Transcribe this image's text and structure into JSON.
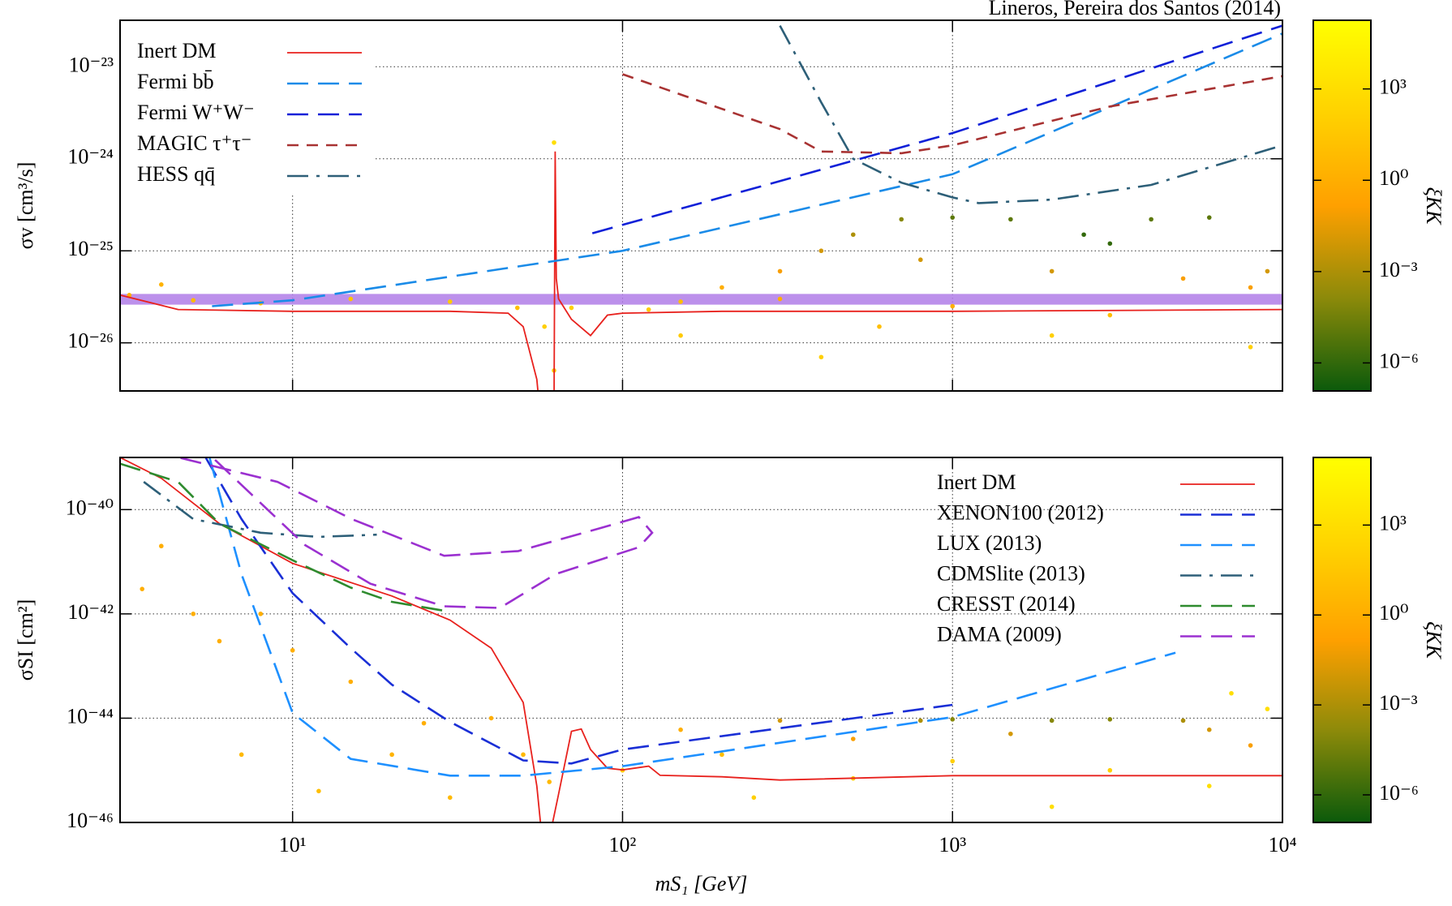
{
  "chart_data": [
    {
      "type": "line",
      "annotation": "Lineros, Pereira dos Santos (2014)",
      "ylabel": "σv [cm³/s]",
      "log_x": true,
      "log_y": true,
      "grid": true,
      "legend": "upper left",
      "xlim": [
        3,
        10000
      ],
      "xticks": [
        10,
        100,
        1000,
        10000
      ],
      "ylim": [
        3e-27,
        3.2e-23
      ],
      "yticks": [
        {
          "value": 1e-26,
          "label": "10⁻²⁶"
        },
        {
          "value": 1e-25,
          "label": "10⁻²⁵"
        },
        {
          "value": 1e-24,
          "label": "10⁻²⁴"
        },
        {
          "value": 1e-23,
          "label": "10⁻²³"
        }
      ],
      "bands": [
        {
          "color": "#b07de8",
          "ylow": 2.6e-26,
          "yhigh": 3.4e-26
        }
      ],
      "colorbar": {
        "label": "ξKK",
        "lim": [
          1.2e-07,
          180000.0
        ],
        "colors": [
          "#0b5a0b",
          "#8c8a0a",
          "#ffa000",
          "#ffd200",
          "#ffff00"
        ],
        "ticks": [
          {
            "value": 1e-06,
            "label": "10⁻⁶"
          },
          {
            "value": 0.001,
            "label": "10⁻³"
          },
          {
            "value": 1,
            "label": "10⁰"
          },
          {
            "value": 1000,
            "label": "10³"
          }
        ]
      },
      "series": [
        {
          "type": "scatter",
          "x": [
            3.2,
            4,
            5,
            8,
            15,
            30,
            48,
            58,
            62,
            62,
            70,
            120,
            150,
            200,
            300,
            400,
            500,
            700,
            1000,
            1500,
            2500,
            3000,
            4000,
            6000,
            800,
            2000,
            5000,
            8000,
            9000,
            300,
            1000,
            3000,
            600,
            2000,
            8000,
            400,
            150
          ],
          "values": [
            3.3e-26,
            4.3e-26,
            2.9e-26,
            2.7e-26,
            3e-26,
            2.8e-26,
            2.4e-26,
            1.5e-26,
            1.5e-24,
            5e-27,
            2.4e-26,
            2.3e-26,
            2.8e-26,
            4e-26,
            6e-26,
            1e-25,
            1.5e-25,
            2.2e-25,
            2.3e-25,
            2.2e-25,
            1.5e-25,
            1.2e-25,
            2.2e-25,
            2.3e-25,
            8e-26,
            6e-26,
            5e-26,
            4e-26,
            6e-26,
            3e-26,
            2.5e-26,
            2e-26,
            1.5e-26,
            1.2e-26,
            9e-27,
            7e-27,
            1.2e-26
          ],
          "xi": [
            1,
            2,
            5,
            10,
            20,
            50,
            10,
            100,
            1000,
            100,
            100,
            50,
            10,
            1,
            0.1,
            0.01,
            0.001,
            0.0001,
            1e-05,
            1e-05,
            1e-06,
            1e-06,
            1e-05,
            1e-05,
            0.01,
            0.01,
            0.1,
            0.1,
            0.01,
            1,
            1,
            10,
            10,
            100,
            100,
            100,
            50
          ]
        },
        {
          "name": "Inert DM",
          "color": "#e8211d",
          "style": "solid",
          "x": [
            3,
            4.5,
            10,
            30,
            45,
            50,
            55,
            56,
            62,
            62.5,
            63,
            64,
            70,
            80,
            90,
            100,
            200,
            1000,
            10000
          ],
          "values": [
            3.3e-26,
            2.3e-26,
            2.2e-26,
            2.2e-26,
            2.1e-26,
            1.5e-26,
            4e-27,
            2e-27,
            2e-27,
            1.2e-24,
            5e-26,
            3e-26,
            1.8e-26,
            1.2e-26,
            2e-26,
            2.1e-26,
            2.2e-26,
            2.2e-26,
            2.3e-26
          ]
        },
        {
          "name": "Fermi bb̄",
          "color": "#1a8be8",
          "style": "dashed",
          "x": [
            5.7,
            10,
            100,
            1000,
            10000
          ],
          "values": [
            2.5e-26,
            2.9e-26,
            1e-25,
            6.8e-25,
            2.3e-23
          ]
        },
        {
          "name": "Fermi W⁺W⁻",
          "color": "#1020d8",
          "style": "dashed",
          "x": [
            81,
            1000,
            10000
          ],
          "values": [
            1.55e-25,
            1.9e-24,
            2.8e-23
          ]
        },
        {
          "name": "MAGIC τ⁺τ⁻",
          "color": "#a83232",
          "style": "shortdash",
          "x": [
            100,
            300,
            400,
            700,
            1000,
            3000,
            10000
          ],
          "values": [
            8.3e-24,
            2.1e-24,
            1.2e-24,
            1.15e-24,
            1.4e-24,
            3.7e-24,
            7.9e-24
          ]
        },
        {
          "name": "HESS qq̄",
          "color": "#2d5f78",
          "style": "dashdot",
          "x": [
            300,
            400,
            500,
            700,
            1000,
            1200,
            2000,
            4000,
            10000
          ],
          "values": [
            2.8e-23,
            4.1e-24,
            1e-24,
            5.5e-25,
            3.8e-25,
            3.3e-25,
            3.6e-25,
            5.2e-25,
            1.4e-24
          ]
        }
      ]
    },
    {
      "type": "line",
      "ylabel": "σSI [cm²]",
      "xlabel": "mS₁ [GeV]",
      "log_x": true,
      "log_y": true,
      "grid": true,
      "legend": "upper right",
      "xlim": [
        3,
        10000
      ],
      "xticks": [
        {
          "value": 10,
          "label": "10¹"
        },
        {
          "value": 100,
          "label": "10²"
        },
        {
          "value": 1000,
          "label": "10³"
        },
        {
          "value": 10000,
          "label": "10⁴"
        }
      ],
      "ylim": [
        1e-46,
        1e-39
      ],
      "yticks": [
        {
          "value": 1e-46,
          "label": "10⁻⁴⁶"
        },
        {
          "value": 1e-44,
          "label": "10⁻⁴⁴"
        },
        {
          "value": 1e-42,
          "label": "10⁻⁴²"
        },
        {
          "value": 1e-40,
          "label": "10⁻⁴⁰"
        }
      ],
      "colorbar": {
        "label": "ξKK",
        "lim": [
          1.2e-07,
          180000.0
        ],
        "colors": [
          "#0b5a0b",
          "#8c8a0a",
          "#ffa000",
          "#ffd200",
          "#ffff00"
        ],
        "ticks": [
          {
            "value": 1e-06,
            "label": "10⁻⁶"
          },
          {
            "value": 0.001,
            "label": "10⁻³"
          },
          {
            "value": 1,
            "label": "10⁰"
          },
          {
            "value": 1000,
            "label": "10³"
          }
        ]
      },
      "series": [
        {
          "type": "scatter",
          "x": [
            4,
            5,
            6,
            8,
            10,
            15,
            20,
            25,
            30,
            40,
            50,
            60,
            3.5,
            7,
            12,
            100,
            150,
            200,
            300,
            500,
            800,
            1000,
            1500,
            2000,
            3000,
            5000,
            6000,
            8000,
            1000,
            2000,
            3000,
            6000,
            9000,
            7000,
            500,
            250
          ],
          "values": [
            2e-41,
            1e-42,
            3e-43,
            1e-42,
            2e-43,
            5e-44,
            2e-45,
            8e-45,
            3e-46,
            1e-44,
            2e-45,
            6e-46,
            3e-42,
            2e-45,
            4e-46,
            1e-45,
            6e-45,
            2e-45,
            9e-45,
            4e-45,
            9e-45,
            9.5e-45,
            5e-45,
            9e-45,
            9.5e-45,
            9e-45,
            6e-45,
            3e-45,
            1.5e-45,
            2e-46,
            1e-45,
            5e-46,
            1.5e-44,
            3e-44,
            7e-46,
            3e-46
          ],
          "xi": [
            1,
            1,
            1,
            1,
            1,
            1,
            2,
            1,
            5,
            1,
            5,
            5,
            1,
            5,
            10,
            50,
            1,
            10,
            0.01,
            0.1,
            0.001,
            0.0001,
            0.01,
            0.0001,
            0.0001,
            0.001,
            0.01,
            0.1,
            100,
            1000,
            100,
            1000,
            1000,
            1000,
            100,
            100
          ]
        },
        {
          "name": "Inert DM",
          "color": "#e8211d",
          "style": "solid",
          "x": [
            3,
            4,
            6,
            10,
            20,
            30,
            40,
            50,
            55,
            57,
            60,
            63.8,
            70,
            75,
            80,
            90,
            100,
            120,
            130,
            200,
            300,
            1000,
            10000
          ],
          "values": [
            1e-39,
            4e-40,
            5.4e-41,
            9.3e-42,
            2.2e-42,
            7.6e-43,
            2.2e-43,
            2e-44,
            5e-46,
            5e-47,
            5e-47,
            3.2e-46,
            5.6e-45,
            6.2e-45,
            2.5e-45,
            1.1e-45,
            1.02e-45,
            1.2e-45,
            8e-46,
            7.5e-46,
            6.5e-46,
            7.9e-46,
            7.9e-46
          ]
        },
        {
          "name": "XENON100 (2012)",
          "color": "#1a2fd6",
          "style": "dashed",
          "x": [
            5.45,
            7,
            10,
            15,
            20,
            30,
            50,
            70,
            100,
            1000
          ],
          "values": [
            1e-39,
            6.6e-41,
            2.5e-42,
            2.2e-43,
            4.4e-44,
            8.5e-45,
            1.55e-45,
            1.35e-45,
            2.5e-45,
            1.8e-44
          ]
        },
        {
          "name": "LUX (2013)",
          "color": "#1e90ff",
          "style": "dashed",
          "x": [
            5.6,
            7,
            10,
            15,
            30,
            50,
            100,
            1000,
            4740
          ],
          "values": [
            1e-39,
            5.8e-42,
            1.26e-44,
            1.66e-45,
            7.9e-46,
            7.9e-46,
            1.2e-45,
            1.05e-44,
            1.8e-43
          ]
        },
        {
          "name": "CDMSlite (2013)",
          "color": "#2d5f78",
          "style": "dashdot",
          "x": [
            3.54,
            5,
            8,
            12,
            18
          ],
          "values": [
            3.4e-40,
            6.6e-41,
            3.6e-41,
            3e-41,
            3.3e-41
          ]
        },
        {
          "name": "CRESST (2014)",
          "color": "#2e8b2e",
          "style": "dashed",
          "x": [
            3,
            4.5,
            6,
            10,
            15,
            20,
            30
          ],
          "values": [
            7.6e-40,
            3.4e-40,
            5.4e-41,
            1.07e-41,
            3.2e-42,
            1.7e-42,
            1.1e-42
          ]
        },
        {
          "name": "DAMA (2009)",
          "color": "#9b30d0",
          "style": "dashed",
          "x": [
            4.58,
            9,
            15.1,
            28.8,
            48.3,
            86.5,
            112,
            123,
            112,
            62.7,
            42.5,
            28.8,
            17.2,
            10.9,
            5.74
          ],
          "values": [
            9.8e-40,
            3.4e-40,
            6.6e-41,
            1.3e-41,
            1.6e-41,
            4.5e-41,
            7.2e-41,
            3.6e-41,
            1.9e-41,
            5.8e-42,
            1.3e-42,
            1.4e-42,
            3.8e-42,
            2.1e-41,
            9.8e-40
          ]
        }
      ]
    }
  ]
}
